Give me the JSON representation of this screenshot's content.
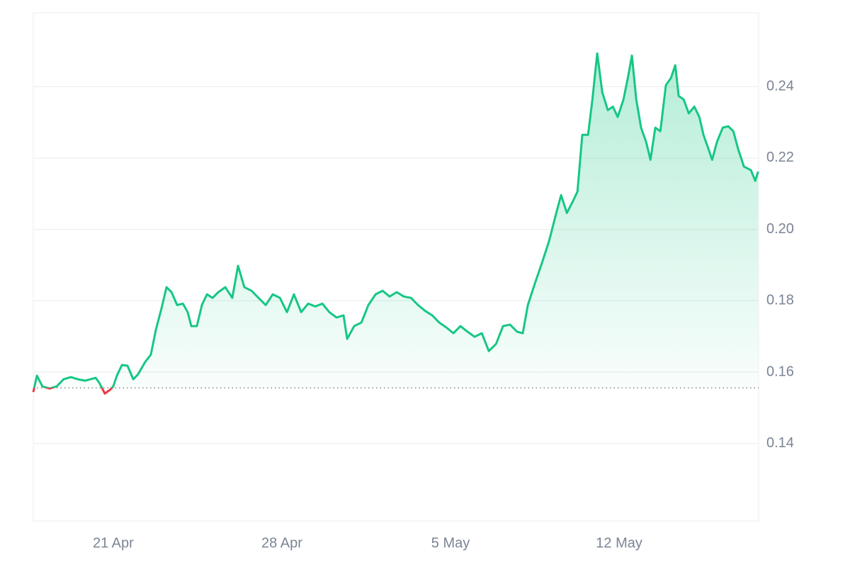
{
  "chart_data": {
    "type": "line",
    "baseline": 0.1556,
    "up_color": "#16c784",
    "down_color": "#ea3943",
    "grid": true,
    "xlim": [
      17.68,
      47.79
    ],
    "xticks": [
      {
        "value": 21,
        "label": "21 Apr"
      },
      {
        "value": 28,
        "label": "28 Apr"
      },
      {
        "value": 35,
        "label": "5 May"
      },
      {
        "value": 42,
        "label": "12 May"
      }
    ],
    "ylim": [
      0.1183,
      0.2607
    ],
    "yticks": [
      0.14,
      0.16,
      0.18,
      {
        "value": 0.2,
        "label": "0.20"
      },
      0.22,
      0.24
    ],
    "x": [
      17.68,
      17.83,
      18.06,
      18.36,
      18.65,
      18.94,
      19.24,
      19.53,
      19.83,
      20.27,
      20.42,
      20.65,
      20.86,
      21.0,
      21.15,
      21.36,
      21.59,
      21.83,
      22.03,
      22.33,
      22.56,
      22.77,
      23.0,
      23.21,
      23.42,
      23.65,
      23.89,
      24.09,
      24.24,
      24.47,
      24.68,
      24.89,
      25.12,
      25.36,
      25.65,
      25.94,
      26.18,
      26.44,
      26.74,
      27.03,
      27.33,
      27.62,
      27.92,
      28.21,
      28.5,
      28.8,
      29.09,
      29.39,
      29.68,
      29.97,
      30.27,
      30.56,
      30.71,
      31.0,
      31.3,
      31.59,
      31.89,
      32.18,
      32.47,
      32.77,
      33.06,
      33.36,
      33.65,
      33.94,
      34.24,
      34.53,
      34.83,
      35.12,
      35.41,
      35.71,
      36.0,
      36.3,
      36.59,
      36.89,
      37.18,
      37.47,
      37.77,
      38.0,
      38.21,
      38.5,
      38.8,
      39.09,
      39.39,
      39.59,
      39.83,
      40.06,
      40.27,
      40.47,
      40.71,
      40.89,
      41.09,
      41.3,
      41.53,
      41.74,
      41.94,
      42.18,
      42.36,
      42.53,
      42.71,
      42.91,
      43.12,
      43.3,
      43.5,
      43.71,
      43.94,
      44.15,
      44.33,
      44.47,
      44.68,
      44.89,
      45.12,
      45.33,
      45.5,
      45.71,
      45.86,
      46.06,
      46.3,
      46.53,
      46.74,
      46.94,
      47.18,
      47.47,
      47.65,
      47.77
    ],
    "values": [
      0.1544,
      0.159,
      0.156,
      0.1554,
      0.156,
      0.158,
      0.1586,
      0.158,
      0.1576,
      0.1584,
      0.157,
      0.154,
      0.155,
      0.156,
      0.159,
      0.162,
      0.1618,
      0.158,
      0.1594,
      0.1629,
      0.1649,
      0.1719,
      0.1778,
      0.1838,
      0.1824,
      0.1788,
      0.1792,
      0.1768,
      0.1729,
      0.1729,
      0.1788,
      0.1818,
      0.1808,
      0.1824,
      0.1838,
      0.1808,
      0.1898,
      0.1838,
      0.1828,
      0.1808,
      0.1788,
      0.1818,
      0.1808,
      0.1768,
      0.1818,
      0.1768,
      0.1792,
      0.1784,
      0.1792,
      0.1768,
      0.1753,
      0.1759,
      0.1693,
      0.1729,
      0.1739,
      0.1788,
      0.1818,
      0.1828,
      0.1812,
      0.1824,
      0.1812,
      0.1808,
      0.1788,
      0.1772,
      0.1759,
      0.1739,
      0.1725,
      0.1709,
      0.1729,
      0.1713,
      0.1699,
      0.1709,
      0.1659,
      0.1679,
      0.1729,
      0.1733,
      0.1713,
      0.1709,
      0.1788,
      0.1848,
      0.1907,
      0.1967,
      0.2046,
      0.2096,
      0.2046,
      0.2076,
      0.2106,
      0.2265,
      0.2265,
      0.2364,
      0.2493,
      0.2384,
      0.2334,
      0.2344,
      0.2315,
      0.2364,
      0.2424,
      0.2487,
      0.2364,
      0.2285,
      0.2245,
      0.2195,
      0.2285,
      0.2275,
      0.2404,
      0.2424,
      0.246,
      0.2374,
      0.2364,
      0.2325,
      0.2344,
      0.2315,
      0.2265,
      0.2225,
      0.2195,
      0.2245,
      0.2285,
      0.2289,
      0.2275,
      0.2225,
      0.2176,
      0.2166,
      0.2136,
      0.2162
    ]
  }
}
